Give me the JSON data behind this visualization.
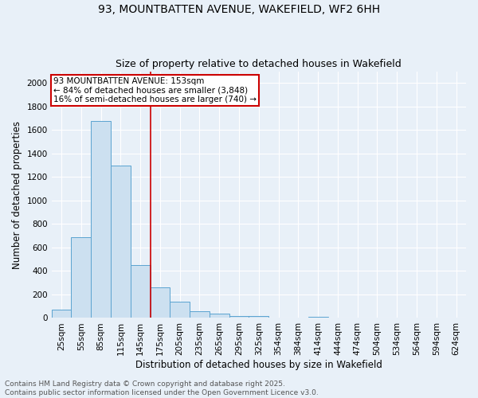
{
  "title_line1": "93, MOUNTBATTEN AVENUE, WAKEFIELD, WF2 6HH",
  "title_line2": "Size of property relative to detached houses in Wakefield",
  "xlabel": "Distribution of detached houses by size in Wakefield",
  "ylabel": "Number of detached properties",
  "categories": [
    "25sqm",
    "55sqm",
    "85sqm",
    "115sqm",
    "145sqm",
    "175sqm",
    "205sqm",
    "235sqm",
    "265sqm",
    "295sqm",
    "325sqm",
    "354sqm",
    "384sqm",
    "414sqm",
    "444sqm",
    "474sqm",
    "504sqm",
    "534sqm",
    "564sqm",
    "594sqm",
    "624sqm"
  ],
  "values": [
    68,
    690,
    1680,
    1300,
    450,
    260,
    140,
    55,
    40,
    20,
    18,
    0,
    0,
    10,
    0,
    0,
    0,
    0,
    0,
    0,
    0
  ],
  "bar_color": "#cce0f0",
  "bar_edge_color": "#5ba3d0",
  "vline_x": 4.5,
  "vline_color": "#cc0000",
  "annotation_text": "93 MOUNTBATTEN AVENUE: 153sqm\n← 84% of detached houses are smaller (3,848)\n16% of semi-detached houses are larger (740) →",
  "annotation_box_color": "white",
  "annotation_box_edge": "#cc0000",
  "ylim": [
    0,
    2100
  ],
  "yticks": [
    0,
    200,
    400,
    600,
    800,
    1000,
    1200,
    1400,
    1600,
    1800,
    2000
  ],
  "footer_text": "Contains HM Land Registry data © Crown copyright and database right 2025.\nContains public sector information licensed under the Open Government Licence v3.0.",
  "bg_color": "#e8f0f8",
  "plot_bg_color": "#e8f0f8",
  "grid_color": "white",
  "title_fontsize": 10,
  "subtitle_fontsize": 9,
  "axis_label_fontsize": 8.5,
  "tick_fontsize": 7.5,
  "footer_fontsize": 6.5,
  "ann_fontsize": 7.5
}
